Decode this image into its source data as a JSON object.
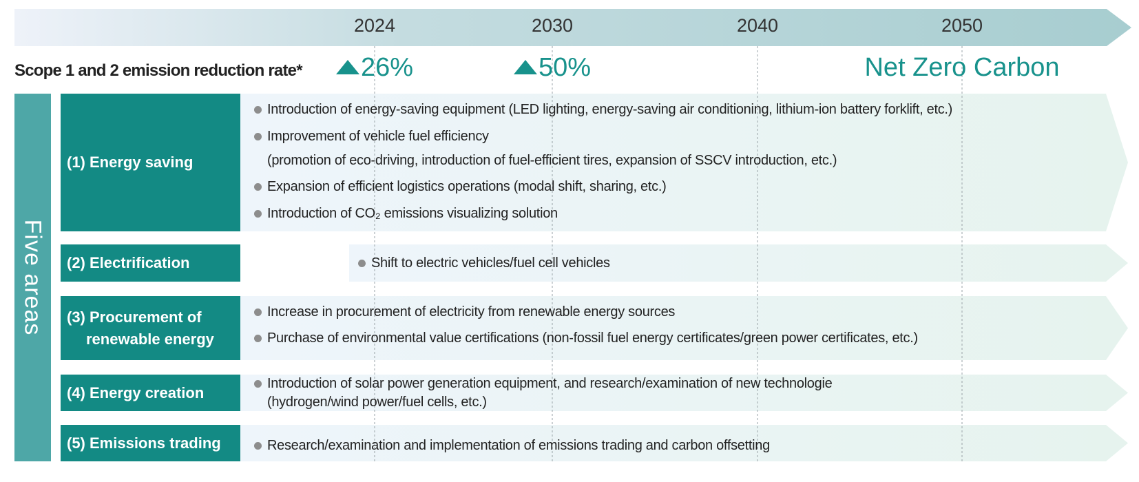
{
  "timeline": {
    "years": [
      "2024",
      "2030",
      "2040",
      "2050"
    ]
  },
  "targets": {
    "label": "Scope 1 and 2 emission reduction rate*",
    "values": [
      "26%",
      "50%"
    ],
    "goal": "Net Zero Carbon"
  },
  "areas": {
    "title": "Five areas",
    "rows": [
      {
        "label": [
          "(1) Energy saving"
        ],
        "items": [
          [
            "Introduction of energy-saving equipment (LED lighting, energy-saving air conditioning, lithium-ion battery forklift, etc.)"
          ],
          [
            "Improvement of vehicle fuel efficiency",
            "(promotion of eco-driving, introduction of fuel-efficient tires, expansion of SSCV introduction, etc.)"
          ],
          [
            "Expansion of efficient logistics operations (modal shift, sharing, etc.)"
          ],
          [
            "Introduction of CO₂ emissions visualizing solution"
          ]
        ]
      },
      {
        "label": [
          "(2) Electrification"
        ],
        "items": [
          [
            "Shift to electric vehicles/fuel cell vehicles"
          ]
        ]
      },
      {
        "label": [
          "(3) Procurement of",
          "renewable energy"
        ],
        "items": [
          [
            "Increase in procurement of electricity from renewable energy sources"
          ],
          [
            "Purchase of environmental value certifications (non-fossil fuel energy certificates/green power certificates, etc.)"
          ]
        ]
      },
      {
        "label": [
          "(4) Energy creation"
        ],
        "items": [
          [
            "Introduction of solar power generation equipment, and research/examination of new technologie",
            "(hydrogen/wind power/fuel cells, etc.)"
          ]
        ]
      },
      {
        "label": [
          "(5) Emissions trading"
        ],
        "items": [
          [
            "Research/examination and implementation of emissions trading and carbon offsetting"
          ]
        ]
      }
    ]
  }
}
